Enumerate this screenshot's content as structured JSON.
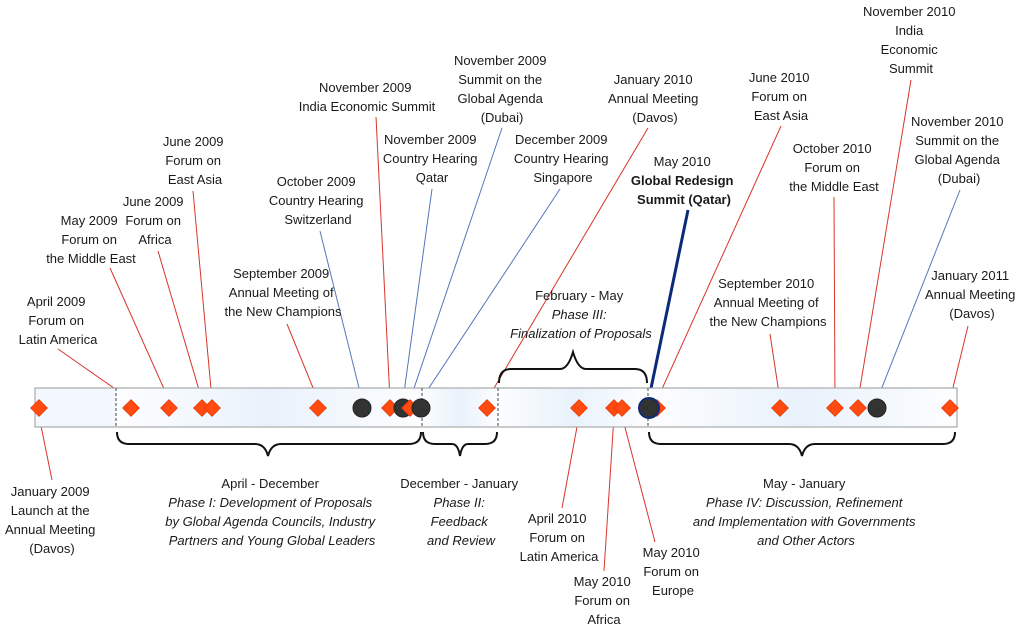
{
  "colors": {
    "event": "#ff4a10",
    "event_stroke": "#e03000",
    "hearing": "#333333",
    "red_line": "#d8352a",
    "blue_line": "#5577bb",
    "summit_line": "#0b2a7a",
    "bar_fill": "#eef5fd",
    "bar_stroke": "#999999"
  },
  "top_labels": [
    {
      "id": "apr-2009",
      "lines": [
        "April 2009",
        "Forum on",
        "Latin America"
      ]
    },
    {
      "id": "may-2009",
      "lines": [
        "May 2009",
        "Forum on",
        "the Middle East"
      ]
    },
    {
      "id": "jun-2009-africa",
      "lines": [
        "June 2009",
        "Forum on",
        "Africa"
      ]
    },
    {
      "id": "jun-2009-eastasia",
      "lines": [
        "June 2009",
        "Forum on",
        "East Asia"
      ]
    },
    {
      "id": "sep-2009",
      "lines": [
        "September 2009",
        "Annual Meeting of",
        "the New Champions"
      ]
    },
    {
      "id": "oct-2009",
      "lines": [
        "October 2009",
        "Country Hearing",
        "Switzerland"
      ]
    },
    {
      "id": "nov-2009-india",
      "lines": [
        "November 2009",
        "India Economic Summit"
      ]
    },
    {
      "id": "nov-2009-qatar",
      "lines": [
        "November 2009",
        "Country Hearing",
        "Qatar"
      ]
    },
    {
      "id": "nov-2009-dubai",
      "lines": [
        "November 2009",
        "Summit on the",
        "Global Agenda",
        "(Dubai)"
      ]
    },
    {
      "id": "dec-2009",
      "lines": [
        "December 2009",
        "Country Hearing",
        "Singapore"
      ]
    },
    {
      "id": "jan-2010",
      "lines": [
        "January 2010",
        "Annual Meeting",
        "(Davos)"
      ]
    },
    {
      "id": "may-2010-summit",
      "lines": [
        "May 2010",
        "Global Redesign",
        "Summit (Qatar)"
      ]
    },
    {
      "id": "jun-2010",
      "lines": [
        "June 2010",
        "Forum on",
        "East Asia"
      ]
    },
    {
      "id": "sep-2010",
      "lines": [
        "September 2010",
        "Annual Meeting of",
        "the New Champions"
      ]
    },
    {
      "id": "oct-2010",
      "lines": [
        "October 2010",
        "Forum on",
        "the Middle East"
      ]
    },
    {
      "id": "nov-2010-india",
      "lines": [
        "November 2010",
        "India",
        "Economic",
        "Summit"
      ]
    },
    {
      "id": "nov-2010-dubai",
      "lines": [
        "November 2010",
        "Summit on the",
        "Global Agenda",
        "(Dubai)"
      ]
    },
    {
      "id": "jan-2011",
      "lines": [
        "January 2011",
        "Annual Meeting",
        "(Davos)"
      ]
    }
  ],
  "bottom_labels": [
    {
      "id": "jan-2009",
      "lines": [
        "January 2009",
        "Launch at the",
        "Annual Meeting",
        "(Davos)"
      ]
    },
    {
      "id": "apr-2010",
      "lines": [
        "April 2010",
        "Forum on",
        "Latin America"
      ]
    },
    {
      "id": "may-2010-africa",
      "lines": [
        "May 2010",
        "Forum on",
        "Africa"
      ]
    },
    {
      "id": "may-2010-europe",
      "lines": [
        "May 2010",
        "Forum on",
        "Europe"
      ]
    }
  ],
  "phases": [
    {
      "id": "phase-1",
      "period": "April - December",
      "desc": [
        "Phase I: Development of Proposals",
        "by Global Agenda Councils, Industry",
        "Partners and Young Global Leaders"
      ]
    },
    {
      "id": "phase-2",
      "period": "December - January",
      "desc": [
        "Phase II:",
        "Feedback",
        "and Review"
      ]
    },
    {
      "id": "phase-3",
      "period": "February - May",
      "desc": [
        "Phase III:",
        "Finalization of Proposals"
      ]
    },
    {
      "id": "phase-4",
      "period": "May - January",
      "desc": [
        "Phase IV: Discussion, Refinement",
        "and Implementation with Governments",
        "and Other Actors"
      ]
    }
  ]
}
